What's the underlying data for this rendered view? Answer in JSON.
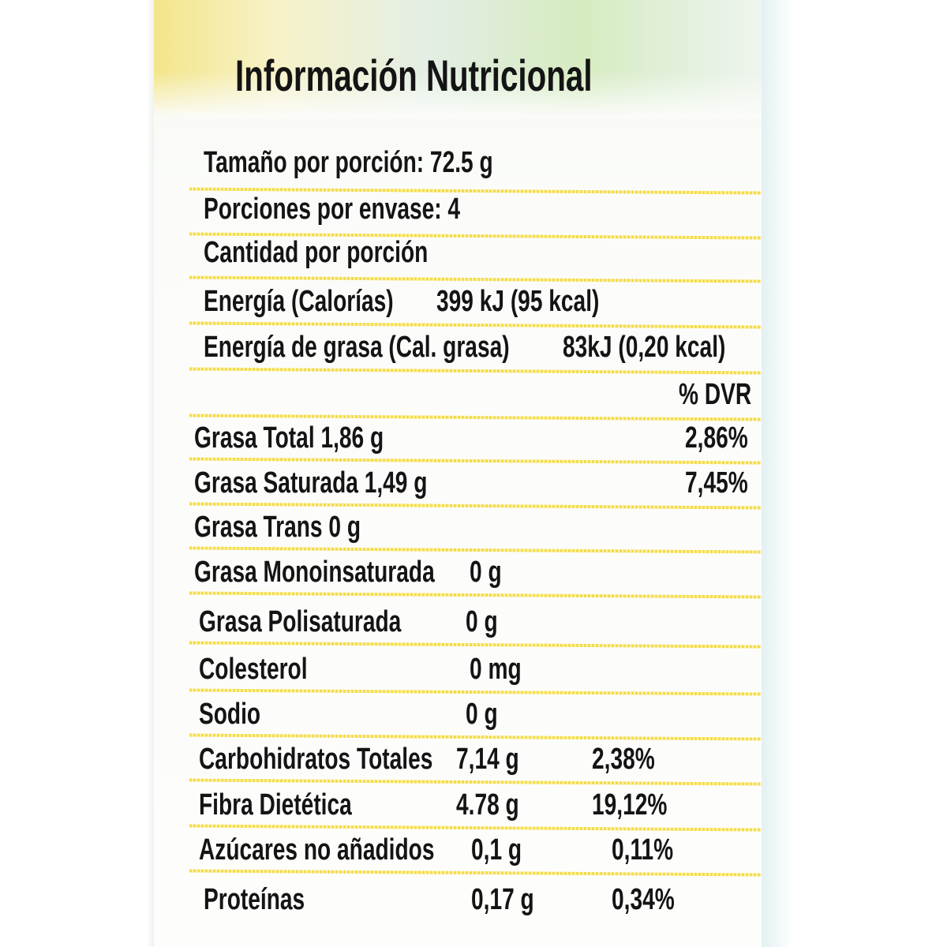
{
  "title": "Información Nutricional",
  "serving_size": "Tamaño por porción: 72.5 g",
  "servings_per_container": "Porciones por envase: 4",
  "amount_per_serving": "Cantidad por porción",
  "energy": {
    "label": "Energía (Calorías)",
    "value": "399 kJ (95 kcal)"
  },
  "energy_fat": {
    "label": "Energía de grasa (Cal. grasa)",
    "value": "83kJ (0,20 kcal)"
  },
  "dvr_header": "% DVR",
  "nutrients": [
    {
      "label": "Grasa Total 1,86 g",
      "value": "",
      "dvr": "2,86%"
    },
    {
      "label": "Grasa Saturada 1,49 g",
      "value": "",
      "dvr": "7,45%"
    },
    {
      "label": "Grasa Trans 0 g",
      "value": "",
      "dvr": ""
    },
    {
      "label": "Grasa Monoinsaturada",
      "value": "0 g",
      "dvr": ""
    },
    {
      "label": "Grasa Polisaturada",
      "value": "0 g",
      "dvr": ""
    },
    {
      "label": "Colesterol",
      "value": "0 mg",
      "dvr": ""
    },
    {
      "label": "Sodio",
      "value": "0 g",
      "dvr": ""
    },
    {
      "label": "Carbohidratos Totales",
      "value": "7,14 g",
      "dvr": "2,38%"
    },
    {
      "label": "Fibra Dietética",
      "value": "4.78 g",
      "dvr": "19,12%"
    },
    {
      "label": "Azúcares no añadidos",
      "value": "0,1 g",
      "dvr": "0,11%"
    },
    {
      "label": "Proteínas",
      "value": "0,17  g",
      "dvr": "0,34%"
    }
  ],
  "colors": {
    "rule": "#f2d83a",
    "text": "#141414"
  }
}
